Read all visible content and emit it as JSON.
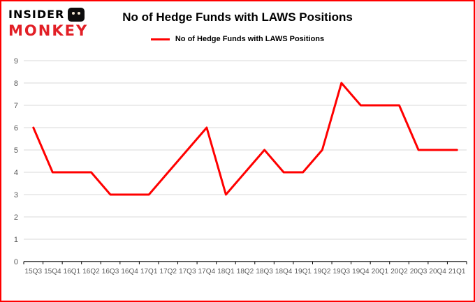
{
  "logo": {
    "line1": "INSIDER",
    "line2": "MONKEY",
    "accent_color": "#e21f26"
  },
  "header": {
    "title": "No of Hedge Funds with LAWS Positions"
  },
  "legend": {
    "label": "No of Hedge Funds with LAWS Positions",
    "line_color": "#ff0000"
  },
  "chart_data": {
    "type": "line",
    "title": "No of Hedge Funds with LAWS Positions",
    "categories": [
      "15Q3",
      "15Q4",
      "16Q1",
      "16Q2",
      "16Q3",
      "16Q4",
      "17Q1",
      "17Q2",
      "17Q3",
      "17Q4",
      "18Q1",
      "18Q2",
      "18Q3",
      "18Q4",
      "19Q1",
      "19Q2",
      "19Q3",
      "19Q4",
      "20Q1",
      "20Q2",
      "20Q3",
      "20Q4",
      "21Q1"
    ],
    "series": [
      {
        "name": "No of Hedge Funds with LAWS Positions",
        "color": "#ff0000",
        "values": [
          6,
          4,
          4,
          4,
          3,
          3,
          3,
          4,
          5,
          6,
          3,
          4,
          5,
          4,
          4,
          5,
          8,
          7,
          7,
          7,
          5,
          5,
          5
        ]
      }
    ],
    "xlabel": "",
    "ylabel": "",
    "ylim": [
      0,
      9
    ],
    "yticks": [
      0,
      1,
      2,
      3,
      4,
      5,
      6,
      7,
      8,
      9
    ],
    "grid": true,
    "legend_position": "top"
  },
  "colors": {
    "frame_border": "#ff0000",
    "grid": "#d9d9d9",
    "axis": "#000000",
    "tick_label": "#595959",
    "background": "#ffffff"
  }
}
